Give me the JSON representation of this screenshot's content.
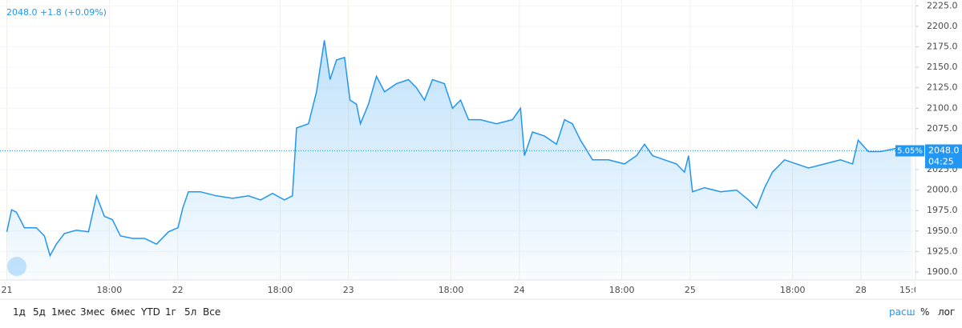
{
  "chart_data": {
    "type": "area",
    "header": "2048.0 +1.8 (+0.09%)",
    "price_label": "2048.0",
    "change_label": "5.05%",
    "countdown": "04:25",
    "color": "#2196f3",
    "x": [
      0,
      0.028,
      0.056,
      0.103,
      0.173,
      0.22,
      0.253,
      0.29,
      0.337,
      0.407,
      0.478,
      0.525,
      0.571,
      0.618,
      0.665,
      0.735,
      0.806,
      0.876,
      0.946,
      1.002,
      1.03,
      1.063,
      1.133,
      1.227,
      1.321,
      1.415,
      1.485,
      1.555,
      1.625,
      1.672,
      1.696,
      1.766,
      1.813,
      1.859,
      1.892,
      1.93,
      1.977,
      2.009,
      2.047,
      2.07,
      2.117,
      2.164,
      2.211,
      2.281,
      2.351,
      2.398,
      2.445,
      2.492,
      2.562,
      2.609,
      2.656,
      2.703,
      2.773,
      2.866,
      2.96,
      3.007,
      3.03,
      3.077,
      3.148,
      3.218,
      3.265,
      3.311,
      3.358,
      3.429,
      3.522,
      3.616,
      3.686,
      3.733,
      3.78,
      3.85,
      3.92,
      3.967,
      3.991,
      4.014,
      4.084,
      4.178,
      4.272,
      4.342,
      4.389,
      4.436,
      4.482,
      4.553,
      4.623,
      4.693,
      4.787,
      4.88,
      4.951,
      4.984,
      5.044,
      5.115,
      5.208,
      5.293
    ],
    "series": [
      {
        "values": [
          1949,
          1976,
          1973,
          1954,
          1954,
          1944,
          1920,
          1934,
          1947,
          1951,
          1949,
          1993,
          1968,
          1964,
          1944,
          1941,
          1941,
          1934,
          1949,
          1954,
          1978,
          1998,
          1998,
          1993,
          1990,
          1993,
          1988,
          1996,
          1988,
          1993,
          2076,
          2081,
          2120,
          2183,
          2135,
          2159,
          2162,
          2110,
          2105,
          2081,
          2105,
          2139,
          2120,
          2130,
          2135,
          2125,
          2110,
          2135,
          2130,
          2100,
          2110,
          2086,
          2086,
          2081,
          2086,
          2100,
          2042,
          2071,
          2066,
          2056,
          2086,
          2081,
          2061,
          2037,
          2037,
          2032,
          2042,
          2056,
          2042,
          2037,
          2032,
          2022,
          2042,
          1998,
          2003,
          1998,
          2000,
          1988,
          1978,
          2003,
          2022,
          2037,
          2032,
          2027,
          2032,
          2037,
          2032,
          2061,
          2047,
          2047,
          2051,
          2048
        ]
      }
    ],
    "xlim": [
      -0.04,
      5.31
    ],
    "xticks": [
      {
        "value": 0,
        "label": "21"
      },
      {
        "value": 0.6,
        "label": "18:00"
      },
      {
        "value": 1,
        "label": "22"
      },
      {
        "value": 1.6,
        "label": "18:00"
      },
      {
        "value": 2,
        "label": "23"
      },
      {
        "value": 2.6,
        "label": "18:00"
      },
      {
        "value": 3,
        "label": "24"
      },
      {
        "value": 3.6,
        "label": "18:00"
      },
      {
        "value": 4,
        "label": "25"
      },
      {
        "value": 4.6,
        "label": "18:00"
      },
      {
        "value": 5,
        "label": "28"
      },
      {
        "value": 5.3,
        "label": "15:00"
      }
    ],
    "ylim": [
      1890.2,
      2232.2
    ],
    "yticks": [
      {
        "value": 1900,
        "label": "1900.0"
      },
      {
        "value": 1925,
        "label": "1925.0"
      },
      {
        "value": 1950,
        "label": "1950.0"
      },
      {
        "value": 1975,
        "label": "1975.0"
      },
      {
        "value": 2000,
        "label": "2000.0"
      },
      {
        "value": 2025,
        "label": "2025.0"
      },
      {
        "value": 2050,
        "label": "2050.0"
      },
      {
        "value": 2075,
        "label": "2075.0"
      },
      {
        "value": 2100,
        "label": "2100.0"
      },
      {
        "value": 2125,
        "label": "2125.0"
      },
      {
        "value": 2150,
        "label": "2150.0"
      },
      {
        "value": 2175,
        "label": "2175.0"
      },
      {
        "value": 2200,
        "label": "2200.0"
      },
      {
        "value": 2225,
        "label": "2225.0"
      }
    ],
    "grid": true
  },
  "toolbar": {
    "ranges": [
      "1д",
      "5д",
      "1мес",
      "3мес",
      "6мес",
      "YTD",
      "1г",
      "5л",
      "Все"
    ],
    "right": [
      "расш",
      "%",
      "лог"
    ]
  }
}
